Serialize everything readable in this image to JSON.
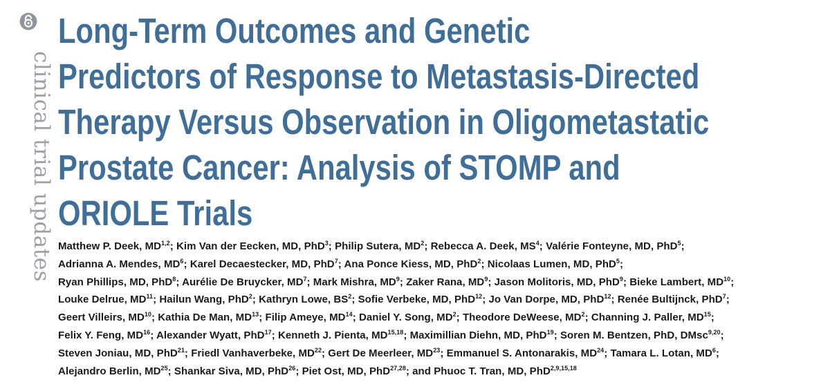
{
  "sidebar": {
    "icon": "open-access-icon",
    "section_label": "clinical trial updates",
    "label_color": "#9aa1a8"
  },
  "title": {
    "color": "#3f6f98",
    "lines": [
      "Long-Term Outcomes and Genetic",
      "Predictors of Response to Metastasis-Directed",
      "Therapy Versus Observation in Oligometastatic",
      "Prostate Cancer: Analysis of STOMP and",
      "ORIOLE Trials"
    ]
  },
  "authors": {
    "lines": [
      [
        {
          "name": "Matthew P. Deek, MD",
          "aff": "1,2",
          "sep": "; "
        },
        {
          "name": "Kim Van der Eecken, MD, PhD",
          "aff": "3",
          "sep": "; "
        },
        {
          "name": "Philip Sutera, MD",
          "aff": "2",
          "sep": "; "
        },
        {
          "name": "Rebecca A. Deek, MS",
          "aff": "4",
          "sep": "; "
        },
        {
          "name": "Valérie Fonteyne, MD, PhD",
          "aff": "5",
          "sep": ";"
        }
      ],
      [
        {
          "name": "Adrianna A. Mendes, MD",
          "aff": "6",
          "sep": "; "
        },
        {
          "name": "Karel Decaestecker, MD, PhD",
          "aff": "7",
          "sep": "; "
        },
        {
          "name": "Ana Ponce Kiess, MD, PhD",
          "aff": "2",
          "sep": "; "
        },
        {
          "name": "Nicolaas Lumen, MD, PhD",
          "aff": "5",
          "sep": ";"
        }
      ],
      [
        {
          "name": "Ryan Phillips, MD, PhD",
          "aff": "8",
          "sep": "; "
        },
        {
          "name": "Aurélie De Bruycker, MD",
          "aff": "7",
          "sep": "; "
        },
        {
          "name": "Mark Mishra, MD",
          "aff": "9",
          "sep": "; "
        },
        {
          "name": "Zaker Rana, MD",
          "aff": "9",
          "sep": "; "
        },
        {
          "name": "Jason Molitoris, MD, PhD",
          "aff": "9",
          "sep": "; "
        },
        {
          "name": "Bieke Lambert, MD",
          "aff": "10",
          "sep": ";"
        }
      ],
      [
        {
          "name": "Louke Delrue, MD",
          "aff": "11",
          "sep": "; "
        },
        {
          "name": "Hailun Wang, PhD",
          "aff": "2",
          "sep": "; "
        },
        {
          "name": "Kathryn Lowe, BS",
          "aff": "2",
          "sep": "; "
        },
        {
          "name": "Sofie Verbeke, MD, PhD",
          "aff": "12",
          "sep": "; "
        },
        {
          "name": "Jo Van Dorpe, MD, PhD",
          "aff": "12",
          "sep": "; "
        },
        {
          "name": "Renée Bultijnck, PhD",
          "aff": "7",
          "sep": ";"
        }
      ],
      [
        {
          "name": "Geert Villeirs, MD",
          "aff": "10",
          "sep": "; "
        },
        {
          "name": "Kathia De Man, MD",
          "aff": "13",
          "sep": "; "
        },
        {
          "name": "Filip Ameye, MD",
          "aff": "14",
          "sep": "; "
        },
        {
          "name": "Daniel Y. Song, MD",
          "aff": "2",
          "sep": "; "
        },
        {
          "name": "Theodore DeWeese, MD",
          "aff": "2",
          "sep": "; "
        },
        {
          "name": "Channing J. Paller, MD",
          "aff": "15",
          "sep": ";"
        }
      ],
      [
        {
          "name": "Felix Y. Feng, MD",
          "aff": "16",
          "sep": "; "
        },
        {
          "name": "Alexander Wyatt, PhD",
          "aff": "17",
          "sep": "; "
        },
        {
          "name": "Kenneth J. Pienta, MD",
          "aff": "15,18",
          "sep": "; "
        },
        {
          "name": "Maximillian Diehn, MD, PhD",
          "aff": "19",
          "sep": "; "
        },
        {
          "name": "Soren M. Bentzen, PhD, DMsc",
          "aff": "9,20",
          "sep": ";"
        }
      ],
      [
        {
          "name": "Steven Joniau, MD, PhD",
          "aff": "21",
          "sep": "; "
        },
        {
          "name": "Friedl Vanhaverbeke, MD",
          "aff": "22",
          "sep": "; "
        },
        {
          "name": "Gert De Meerleer, MD",
          "aff": "23",
          "sep": "; "
        },
        {
          "name": "Emmanuel S. Antonarakis, MD",
          "aff": "24",
          "sep": "; "
        },
        {
          "name": "Tamara L. Lotan, MD",
          "aff": "6",
          "sep": ";"
        }
      ],
      [
        {
          "name": "Alejandro Berlin, MD",
          "aff": "25",
          "sep": "; "
        },
        {
          "name": "Shankar Siva, MD, PhD",
          "aff": "26",
          "sep": "; "
        },
        {
          "name": "Piet Ost, MD, PhD",
          "aff": "27,28",
          "sep": "; and "
        },
        {
          "name": "Phuoc T. Tran, MD, PhD",
          "aff": "2,9,15,18",
          "sep": ""
        }
      ]
    ]
  }
}
